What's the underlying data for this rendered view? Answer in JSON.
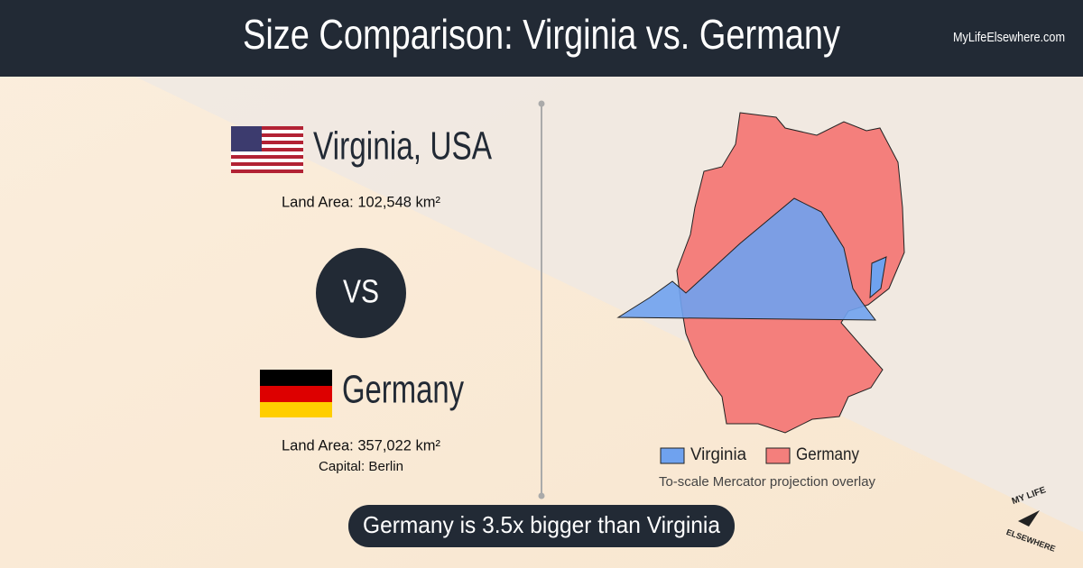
{
  "header": {
    "title": "Size Comparison: Virginia vs. Germany",
    "site": "MyLifeElsewhere.com"
  },
  "first": {
    "name": "Virginia, USA",
    "land_area": "Land Area: 102,548 km²"
  },
  "versus": "VS",
  "second": {
    "name": "Germany",
    "land_area": "Land Area: 357,022 km²",
    "capital": "Capital: Berlin"
  },
  "legend": {
    "items": [
      "Virginia",
      "Germany"
    ],
    "note": "To-scale Mercator projection overlay"
  },
  "banner": "Germany is 3.5x bigger than Virginia",
  "logo": {
    "top": "MY LIFE",
    "bottom": "ELSEWHERE"
  }
}
